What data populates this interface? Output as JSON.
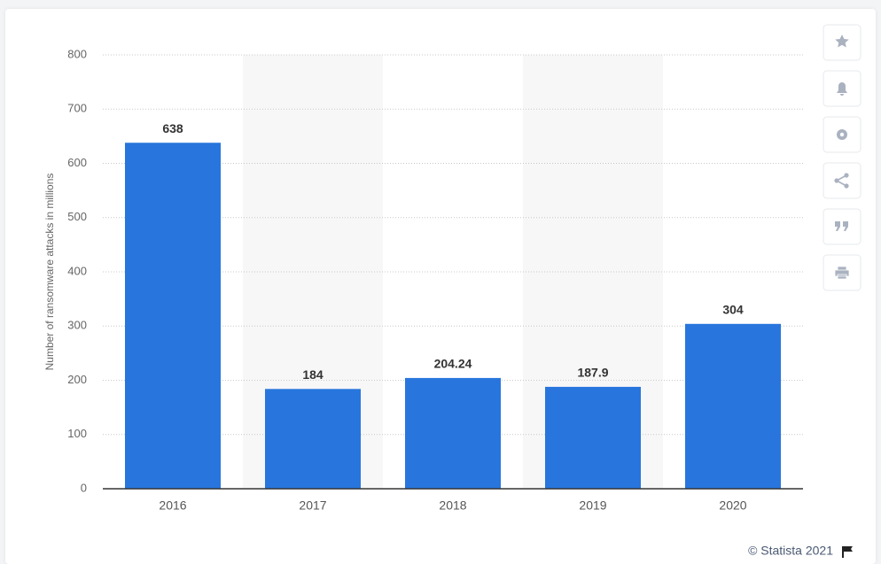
{
  "chart_data": {
    "type": "bar",
    "y_label": "Number of ransomware attacks in millions",
    "categories": [
      "2016",
      "2017",
      "2018",
      "2019",
      "2020"
    ],
    "values": [
      638,
      184,
      204.24,
      187.9,
      304
    ],
    "color": "#2876dd",
    "ylim": [
      0,
      800
    ],
    "yticks": [
      0,
      100,
      200,
      300,
      400,
      500,
      600,
      700,
      800
    ],
    "grid": true,
    "source": "© Statista 2021"
  }
}
